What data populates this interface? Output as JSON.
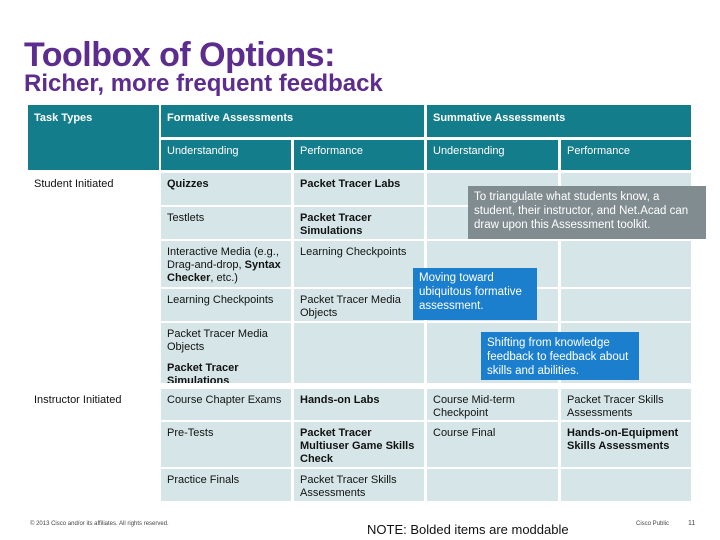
{
  "title": "Toolbox of Options:",
  "subtitle": "Richer, more frequent feedback",
  "headers": {
    "task_types": "Task Types",
    "formative": "Formative Assessments",
    "summative": "Summative Assessments",
    "f_understanding": "Understanding",
    "f_performance": "Performance",
    "s_understanding": "Understanding",
    "s_performance": "Performance"
  },
  "rows": {
    "student_initiated": "Student Initiated",
    "instructor_initiated": "Instructor Initiated"
  },
  "student": {
    "u1": "Quizzes",
    "p1": "Packet Tracer Labs",
    "u2": "Testlets",
    "p2": "Packet Tracer Simulations",
    "u3a": "Interactive Media (e.g., Drag-and-drop, ",
    "u3b": "Syntax Checker",
    "u3c": ", etc.)",
    "p3": "Learning Checkpoints",
    "u4": "Learning Checkpoints",
    "p4": "Packet Tracer Media Objects",
    "u5": "Packet Tracer Media Objects",
    "u6": "Packet Tracer Simulations"
  },
  "instructor": {
    "u1": "Course Chapter Exams",
    "p1": "Hands-on Labs",
    "su1": "Course Mid-term Checkpoint",
    "sp1": "Packet Tracer Skills Assessments",
    "u2": "Pre-Tests",
    "p2": "Packet Tracer Multiuser Game Skills Check",
    "su2": "Course Final",
    "sp2": "Hands-on-Equipment Skills Assessments",
    "u3": "Practice Finals",
    "p3": "Packet Tracer Skills Assessments"
  },
  "callouts": {
    "triangulate": "To triangulate what students know, a student, their instructor, and Net.Acad can draw upon this Assessment toolkit.",
    "moving": "Moving toward ubiquitous formative assessment.",
    "shifting": "Shifting from knowledge feedback to feedback about skills and abilities."
  },
  "footer": {
    "copyright": "© 2013 Cisco and/or its affiliates. All rights reserved.",
    "note": "NOTE: Bolded items are moddable",
    "classification": "Cisco Public",
    "page": "11"
  }
}
